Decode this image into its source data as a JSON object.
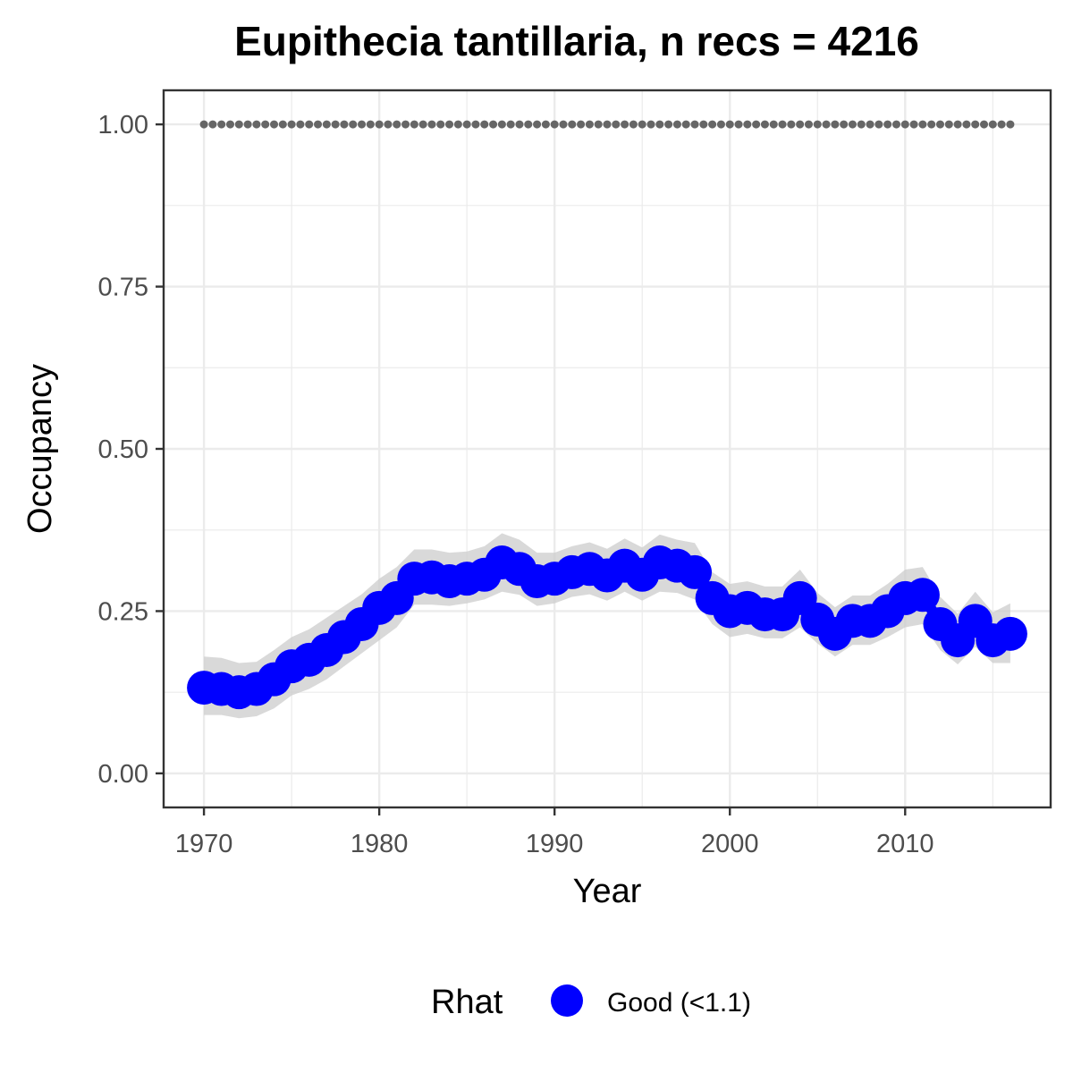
{
  "chart_data": {
    "type": "line",
    "title": "Eupithecia tantillaria, n recs = 4216",
    "xlabel": "Year",
    "ylabel": "Occupancy",
    "xlim": [
      1967.8,
      1918.2
    ],
    "ylim": [
      -0.0525,
      1.0525
    ],
    "x_ticks": [
      1970,
      1980,
      1990,
      2000,
      2010
    ],
    "x_tick_labels": [
      "1970",
      "1980",
      "1990",
      "2000",
      "2010"
    ],
    "y_ticks": [
      0,
      0.25,
      0.5,
      0.75,
      1.0
    ],
    "y_tick_labels": [
      "0.00",
      "0.25",
      "0.50",
      "0.75",
      "1.00"
    ],
    "grid": true,
    "legend": {
      "position": "bottom",
      "title": "Rhat",
      "entries": [
        {
          "label": "Good (<1.1)",
          "color": "#0000ff"
        }
      ]
    },
    "x": [
      1970,
      1971,
      1972,
      1973,
      1974,
      1975,
      1976,
      1977,
      1978,
      1979,
      1980,
      1981,
      1982,
      1983,
      1984,
      1985,
      1986,
      1987,
      1988,
      1989,
      1990,
      1991,
      1992,
      1993,
      1994,
      1995,
      1996,
      1997,
      1998,
      1999,
      2000,
      2001,
      2002,
      2003,
      2004,
      2005,
      2006,
      2007,
      2008,
      2009,
      2010,
      2011,
      2012,
      2013,
      2014,
      2015,
      2016
    ],
    "series": [
      {
        "name": "Good (<1.1)",
        "color": "#0000ff",
        "values": [
          0.132,
          0.13,
          0.125,
          0.13,
          0.145,
          0.165,
          0.175,
          0.19,
          0.21,
          0.23,
          0.255,
          0.27,
          0.3,
          0.302,
          0.296,
          0.3,
          0.306,
          0.325,
          0.315,
          0.296,
          0.3,
          0.31,
          0.315,
          0.305,
          0.32,
          0.306,
          0.325,
          0.32,
          0.31,
          0.27,
          0.25,
          0.255,
          0.245,
          0.245,
          0.27,
          0.237,
          0.215,
          0.235,
          0.235,
          0.25,
          0.27,
          0.275,
          0.23,
          0.205,
          0.235,
          0.205,
          0.215
        ],
        "lower": [
          0.09,
          0.09,
          0.085,
          0.088,
          0.1,
          0.12,
          0.13,
          0.145,
          0.165,
          0.185,
          0.205,
          0.225,
          0.26,
          0.26,
          0.258,
          0.262,
          0.268,
          0.28,
          0.275,
          0.258,
          0.262,
          0.272,
          0.276,
          0.266,
          0.28,
          0.266,
          0.28,
          0.278,
          0.268,
          0.23,
          0.21,
          0.215,
          0.208,
          0.208,
          0.225,
          0.2,
          0.18,
          0.198,
          0.198,
          0.21,
          0.225,
          0.23,
          0.19,
          0.168,
          0.195,
          0.17,
          0.17
        ],
        "upper": [
          0.18,
          0.178,
          0.17,
          0.172,
          0.19,
          0.21,
          0.222,
          0.24,
          0.258,
          0.276,
          0.3,
          0.318,
          0.345,
          0.345,
          0.34,
          0.342,
          0.35,
          0.37,
          0.36,
          0.34,
          0.34,
          0.35,
          0.356,
          0.346,
          0.362,
          0.348,
          0.368,
          0.36,
          0.355,
          0.31,
          0.292,
          0.296,
          0.288,
          0.288,
          0.314,
          0.278,
          0.256,
          0.274,
          0.274,
          0.292,
          0.314,
          0.318,
          0.272,
          0.246,
          0.28,
          0.248,
          0.262
        ]
      }
    ],
    "reference_line": {
      "value": 1.0,
      "style": "dotted",
      "color": "#666666"
    },
    "ribbon_color": "#cccccc"
  }
}
